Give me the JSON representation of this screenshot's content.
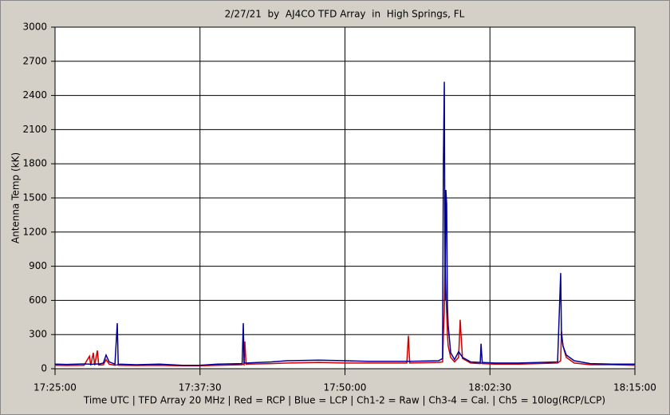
{
  "chart_data": {
    "type": "line",
    "title": "2/27/21  by  AJ4CO TFD Array  in  High Springs, FL",
    "y_label": "Antenna Temp (kK)",
    "x_label": "Time UTC | TFD Array 20 MHz | Red = RCP | Blue = LCP | Ch1-2 = Raw | Ch3-4 = Cal. | Ch5 = 10log(RCP/LCP)",
    "x": [
      "17:25:00",
      "17:26:00",
      "17:27:30",
      "17:27:58",
      "17:28:05",
      "17:28:18",
      "17:28:25",
      "17:28:39",
      "17:28:46",
      "17:29:10",
      "17:29:24",
      "17:29:40",
      "17:30:10",
      "17:30:22",
      "17:30:27",
      "17:32:00",
      "17:34:00",
      "17:36:00",
      "17:37:27",
      "17:39:00",
      "17:41:08",
      "17:41:14",
      "17:41:18",
      "17:41:22",
      "17:41:28",
      "17:43:38",
      "17:45:00",
      "17:47:46",
      "17:50:00",
      "17:52:00",
      "17:55:20",
      "17:55:28",
      "17:55:35",
      "17:58:05",
      "17:58:25",
      "17:58:29",
      "17:58:34",
      "17:58:38",
      "17:58:42",
      "17:58:46",
      "17:58:50",
      "17:58:54",
      "17:59:07",
      "17:59:27",
      "17:59:48",
      "17:59:56",
      "18:00:08",
      "18:00:50",
      "18:01:40",
      "18:01:44",
      "18:01:50",
      "18:02:54",
      "18:05:00",
      "18:08:20",
      "18:08:36",
      "18:08:40",
      "18:08:48",
      "18:09:05",
      "18:09:46",
      "18:11:09",
      "18:13:00",
      "18:15:00"
    ],
    "series": [
      {
        "name": "RCP",
        "color": "#cc0000",
        "values": [
          30,
          28,
          30,
          110,
          30,
          140,
          30,
          160,
          32,
          35,
          80,
          40,
          30,
          35,
          30,
          28,
          30,
          25,
          25,
          30,
          35,
          40,
          35,
          240,
          40,
          45,
          50,
          55,
          50,
          50,
          50,
          290,
          50,
          55,
          60,
          300,
          500,
          950,
          700,
          500,
          300,
          200,
          100,
          60,
          100,
          430,
          90,
          50,
          45,
          50,
          45,
          40,
          40,
          50,
          70,
          330,
          200,
          100,
          50,
          35,
          35,
          30
        ]
      },
      {
        "name": "LCP",
        "color": "#000099",
        "values": [
          40,
          38,
          42,
          40,
          38,
          40,
          40,
          42,
          40,
          50,
          120,
          60,
          40,
          400,
          40,
          35,
          40,
          30,
          30,
          40,
          45,
          400,
          50,
          50,
          50,
          60,
          70,
          75,
          70,
          65,
          65,
          65,
          65,
          70,
          90,
          1800,
          2520,
          600,
          1570,
          1450,
          550,
          380,
          140,
          80,
          150,
          130,
          100,
          60,
          55,
          220,
          55,
          50,
          50,
          60,
          840,
          300,
          200,
          120,
          70,
          45,
          40,
          40
        ]
      }
    ],
    "xlim": [
      "17:25:00",
      "18:15:00"
    ],
    "xticks": [
      "17:25:00",
      "17:37:30",
      "17:50:00",
      "18:02:30",
      "18:15:00"
    ],
    "ylim": [
      0,
      3000
    ],
    "yticks": [
      0,
      300,
      600,
      900,
      1200,
      1500,
      1800,
      2100,
      2400,
      2700,
      3000
    ],
    "grid": true
  }
}
